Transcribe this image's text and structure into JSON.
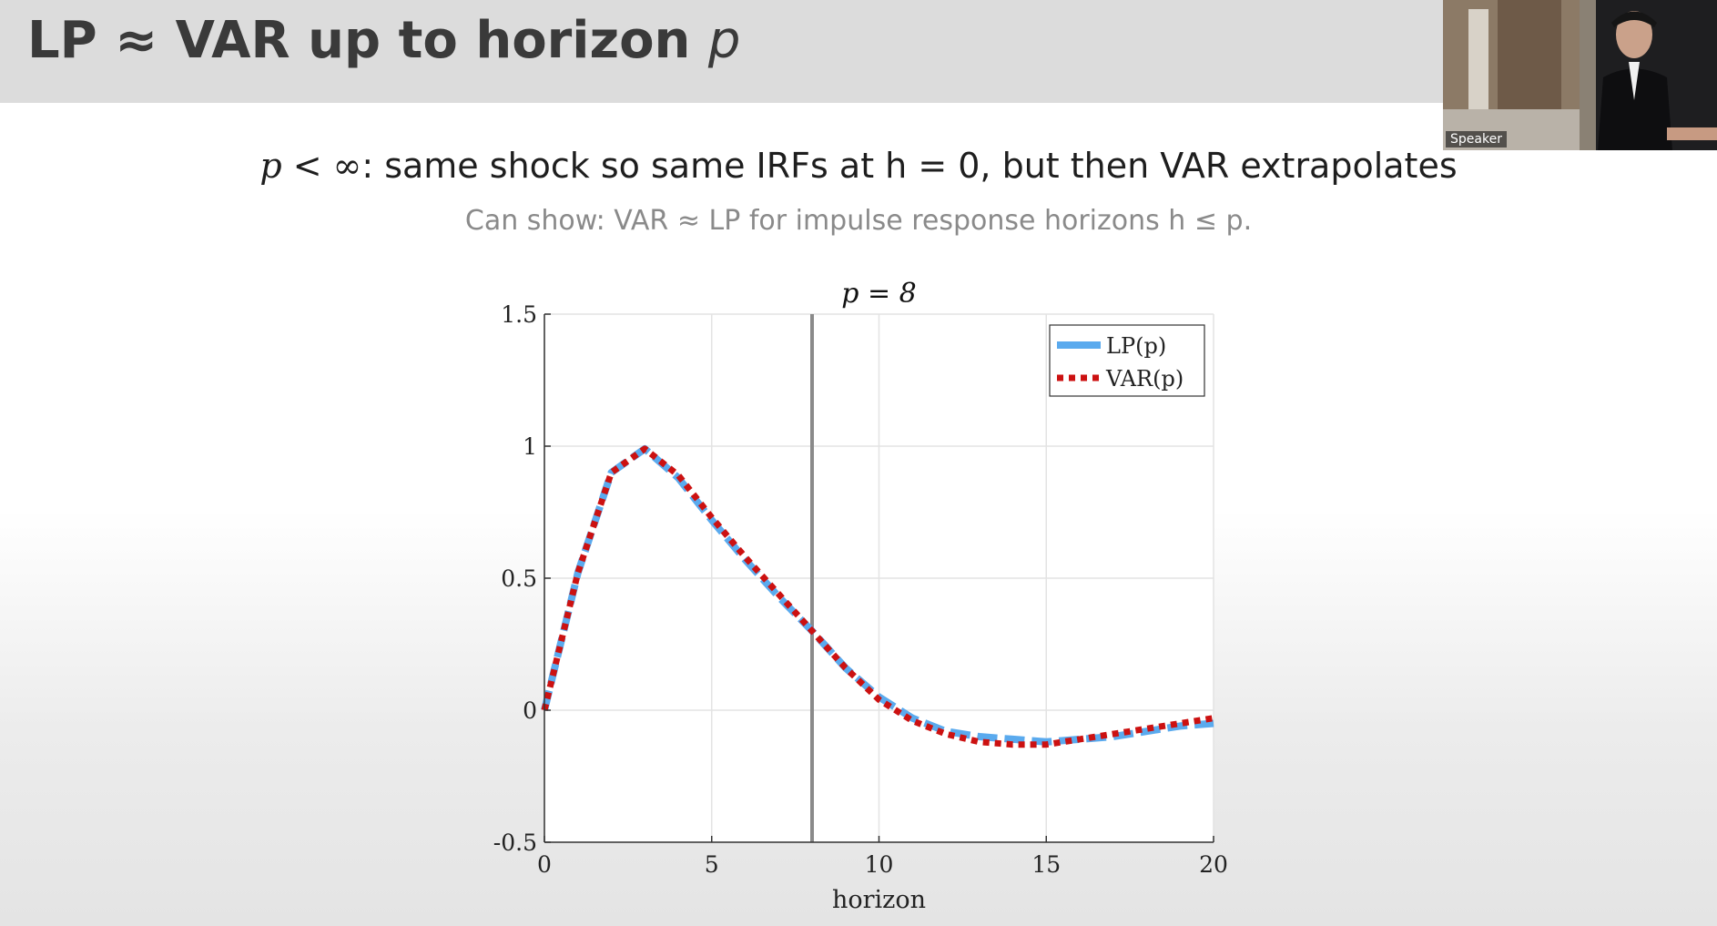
{
  "slide": {
    "title_main": "LP ≈ VAR up to horizon ",
    "title_var": "p",
    "headline_pre": "p < ∞",
    "headline_post": ": same shock so same IRFs at h = 0, but then VAR extrapolates",
    "subline": "Can show: VAR ≈ LP for impulse response horizons h ≤ p."
  },
  "video": {
    "speaker_label": "Speaker"
  },
  "chart_data": {
    "type": "line",
    "title": "p = 8",
    "xlabel": "horizon",
    "ylabel": "",
    "xlim": [
      0,
      20
    ],
    "ylim": [
      -0.5,
      1.5
    ],
    "xticks": [
      0,
      5,
      10,
      15,
      20
    ],
    "yticks": [
      -0.5,
      0,
      0.5,
      1,
      1.5
    ],
    "xtick_labels": [
      "0",
      "5",
      "10",
      "15",
      "20"
    ],
    "ytick_labels": [
      "-0.5",
      "0",
      "0.5",
      "1",
      "1.5"
    ],
    "grid": true,
    "legend_position": "top-right",
    "vertical_line_x": 8,
    "x": [
      0,
      1,
      2,
      3,
      4,
      5,
      6,
      7,
      8,
      9,
      10,
      11,
      12,
      13,
      14,
      15,
      16,
      17,
      18,
      19,
      20
    ],
    "series": [
      {
        "name": "LP(p)",
        "color": "#5aaaee",
        "style": "dashed",
        "values": [
          0,
          0.52,
          0.9,
          0.99,
          0.88,
          0.72,
          0.57,
          0.43,
          0.3,
          0.16,
          0.05,
          -0.03,
          -0.08,
          -0.1,
          -0.11,
          -0.12,
          -0.11,
          -0.1,
          -0.08,
          -0.06,
          -0.05
        ]
      },
      {
        "name": "VAR(p)",
        "color": "#cc1111",
        "style": "dotted",
        "values": [
          0,
          0.52,
          0.9,
          0.99,
          0.89,
          0.73,
          0.58,
          0.44,
          0.3,
          0.16,
          0.04,
          -0.04,
          -0.09,
          -0.12,
          -0.13,
          -0.13,
          -0.11,
          -0.09,
          -0.07,
          -0.05,
          -0.03
        ]
      }
    ]
  }
}
